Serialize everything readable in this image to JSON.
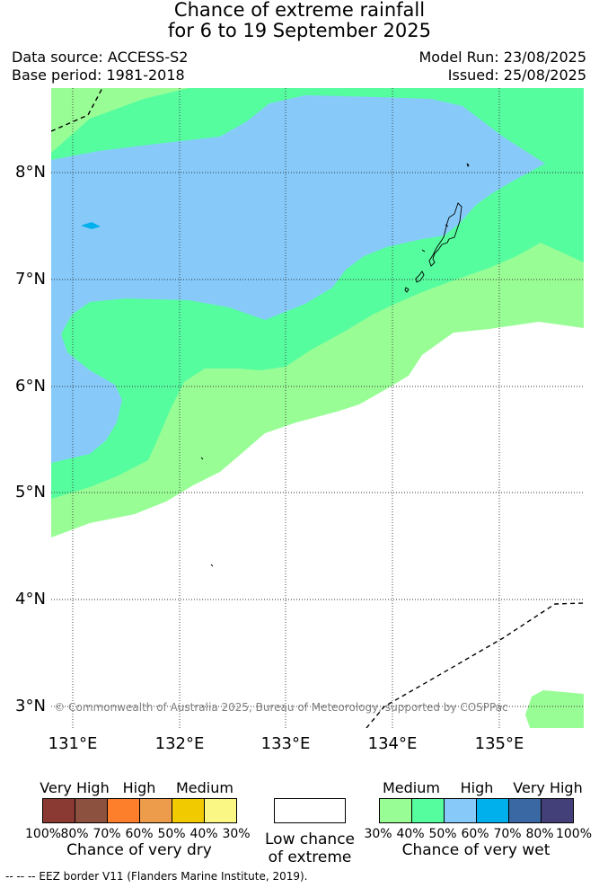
{
  "title_line1": "Chance of extreme rainfall",
  "title_line2": "for 6 to 19 September 2025",
  "data_source": "Data source: ACCESS-S2",
  "base_period": "Base period: 1981-2018",
  "model_run": "Model Run: 23/08/2025",
  "issued": "Issued: 25/08/2025",
  "copyright": "© Commonwealth of Australia 2025, Bureau of Meteorology, supported by COSPPac",
  "lat_labels": [
    "8°N",
    "7°N",
    "6°N",
    "5°N",
    "4°N",
    "3°N"
  ],
  "lon_labels": [
    "131°E",
    "132°E",
    "133°E",
    "134°E",
    "135°E"
  ],
  "dry_legend": {
    "levels": [
      "Very High",
      "High",
      "Medium"
    ],
    "pcts": [
      "100%",
      "80%",
      "70%",
      "60%",
      "50%",
      "40%",
      "30%"
    ],
    "colors": [
      "#8b3a33",
      "#8d5140",
      "#fe7f2b",
      "#ed9c4c",
      "#f1cb00",
      "#fbf785"
    ],
    "caption": "Chance of very dry"
  },
  "low_legend": {
    "line1": "Low chance",
    "line2": "of extreme",
    "color": "#ffffff"
  },
  "wet_legend": {
    "levels": [
      "Medium",
      "High",
      "Very High"
    ],
    "pcts": [
      "30%",
      "40%",
      "50%",
      "60%",
      "70%",
      "80%",
      "100%"
    ],
    "colors": [
      "#99fd96",
      "#56fd9f",
      "#87cafa",
      "#00b0ec",
      "#3a68a3",
      "#423f79"
    ],
    "caption": "Chance of very wet"
  },
  "eez_note": "--  --  -- EEZ border V11 (Flanders Marine Institute, 2019)."
}
